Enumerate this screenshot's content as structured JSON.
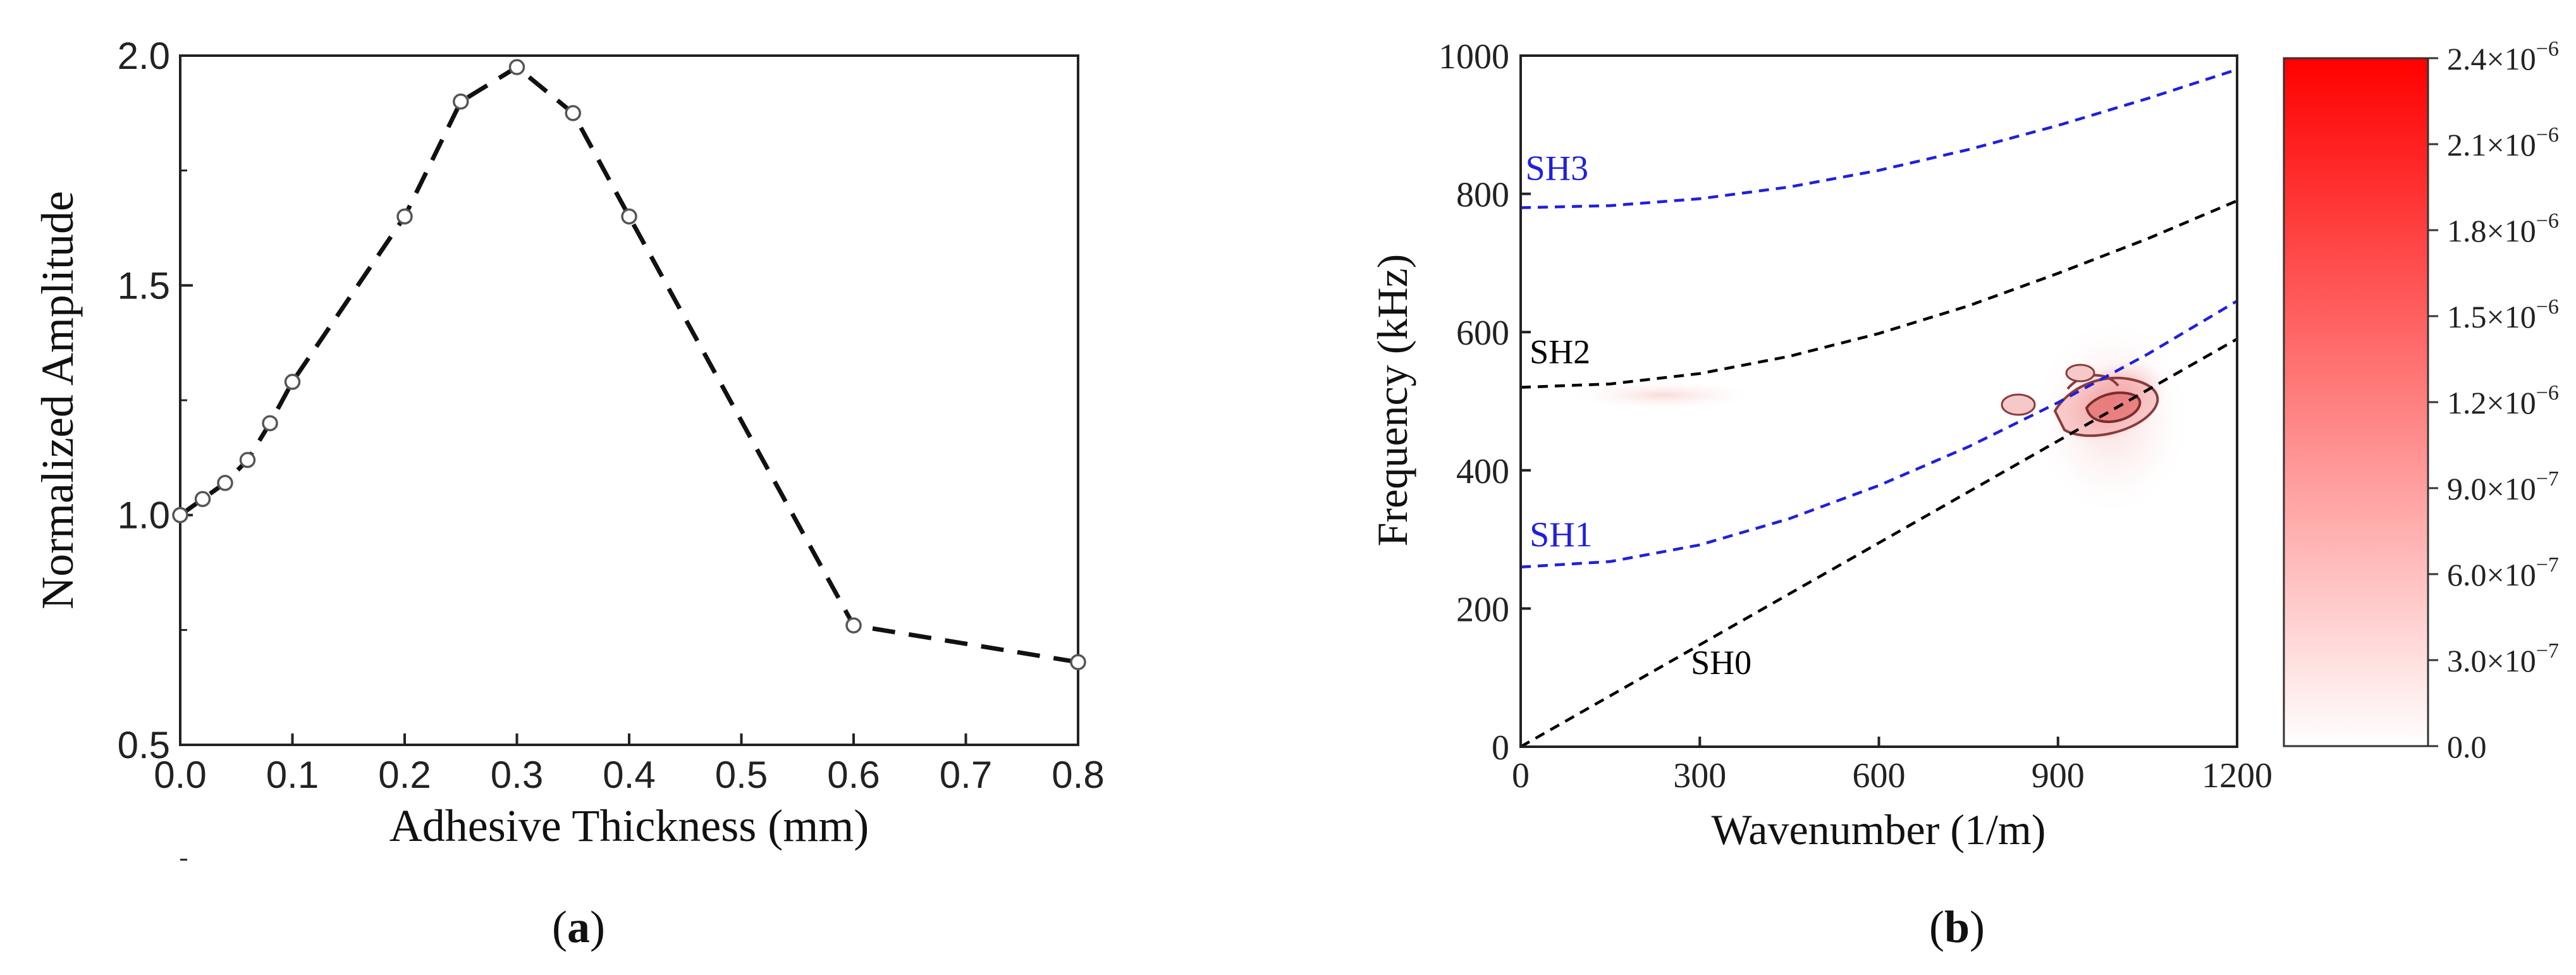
{
  "chart_data": [
    {
      "panel": "a",
      "type": "line",
      "title": "",
      "xlabel": "Adhesive Thickness (mm)",
      "ylabel": "Normalized Amplitude",
      "xlim": [
        0.0,
        0.8
      ],
      "ylim": [
        0.5,
        2.0
      ],
      "xticks": [
        "0.0",
        "0.1",
        "0.2",
        "0.3",
        "0.4",
        "0.5",
        "0.6",
        "0.7",
        "0.8"
      ],
      "yticks": [
        "0.5",
        "1.0",
        "1.5",
        "2.0"
      ],
      "x": [
        0.0,
        0.02,
        0.04,
        0.06,
        0.08,
        0.1,
        0.2,
        0.25,
        0.3,
        0.35,
        0.4,
        0.6,
        0.8
      ],
      "y": [
        1.0,
        1.035,
        1.07,
        1.12,
        1.2,
        1.29,
        1.65,
        1.9,
        1.975,
        1.875,
        1.65,
        0.76,
        0.68
      ],
      "series_style": "dashed line with open circle markers",
      "grid": false
    },
    {
      "panel": "b",
      "type": "line",
      "title": "",
      "xlabel": "Wavenumber (1/m)",
      "ylabel": "Frequency (kHz)",
      "xlim": [
        0,
        1200
      ],
      "ylim": [
        0,
        1000
      ],
      "xticks": [
        "0",
        "300",
        "600",
        "900",
        "1200"
      ],
      "yticks": [
        "0",
        "200",
        "400",
        "600",
        "800",
        "1000"
      ],
      "grid": false,
      "series": [
        {
          "name": "SH0",
          "color": "#000000",
          "x": [
            0,
            1200
          ],
          "y": [
            0,
            590
          ]
        },
        {
          "name": "SH1",
          "color": "#1f1fe0",
          "x": [
            0,
            150,
            300,
            450,
            600,
            750,
            900,
            1050,
            1200
          ],
          "y": [
            260,
            268,
            292,
            330,
            378,
            434,
            498,
            568,
            645
          ]
        },
        {
          "name": "SH2",
          "color": "#000000",
          "x": [
            0,
            150,
            300,
            450,
            600,
            750,
            900,
            1050,
            1200
          ],
          "y": [
            520,
            525,
            540,
            565,
            598,
            638,
            685,
            735,
            790
          ]
        },
        {
          "name": "SH3",
          "color": "#1f1fe0",
          "x": [
            0,
            150,
            300,
            450,
            600,
            750,
            900,
            1050,
            1200
          ],
          "y": [
            780,
            783,
            793,
            810,
            834,
            864,
            899,
            938,
            980
          ]
        }
      ],
      "labels": [
        {
          "text": "SH3",
          "color": "#1f1fe0"
        },
        {
          "text": "SH2",
          "color": "#000000"
        },
        {
          "text": "SH1",
          "color": "#1f1fe0"
        },
        {
          "text": "SH0",
          "color": "#000000"
        }
      ],
      "heatmap_peak": {
        "wavenumber": 1000,
        "frequency": 500
      },
      "colorbar": {
        "min": 0.0,
        "max": 2.4e-06,
        "color_low": "#ffffff",
        "color_high": "#ff0000",
        "tick_values": [
          0.0,
          3e-07,
          6e-07,
          9e-07,
          1.2e-06,
          1.5e-06,
          1.8e-06,
          2.1e-06,
          2.4e-06
        ],
        "tick_labels": [
          {
            "mant": "0.0",
            "exp": ""
          },
          {
            "mant": "3.0×10",
            "exp": "−7"
          },
          {
            "mant": "6.0×10",
            "exp": "−7"
          },
          {
            "mant": "9.0×10",
            "exp": "−7"
          },
          {
            "mant": "1.2×10",
            "exp": "−6"
          },
          {
            "mant": "1.5×10",
            "exp": "−6"
          },
          {
            "mant": "1.8×10",
            "exp": "−6"
          },
          {
            "mant": "2.1×10",
            "exp": "−6"
          },
          {
            "mant": "2.4×10",
            "exp": "−6"
          }
        ]
      }
    }
  ],
  "captions": {
    "a": {
      "open": "(",
      "letter": "a",
      "close": ")"
    },
    "b": {
      "open": "(",
      "letter": "b",
      "close": ")"
    }
  }
}
